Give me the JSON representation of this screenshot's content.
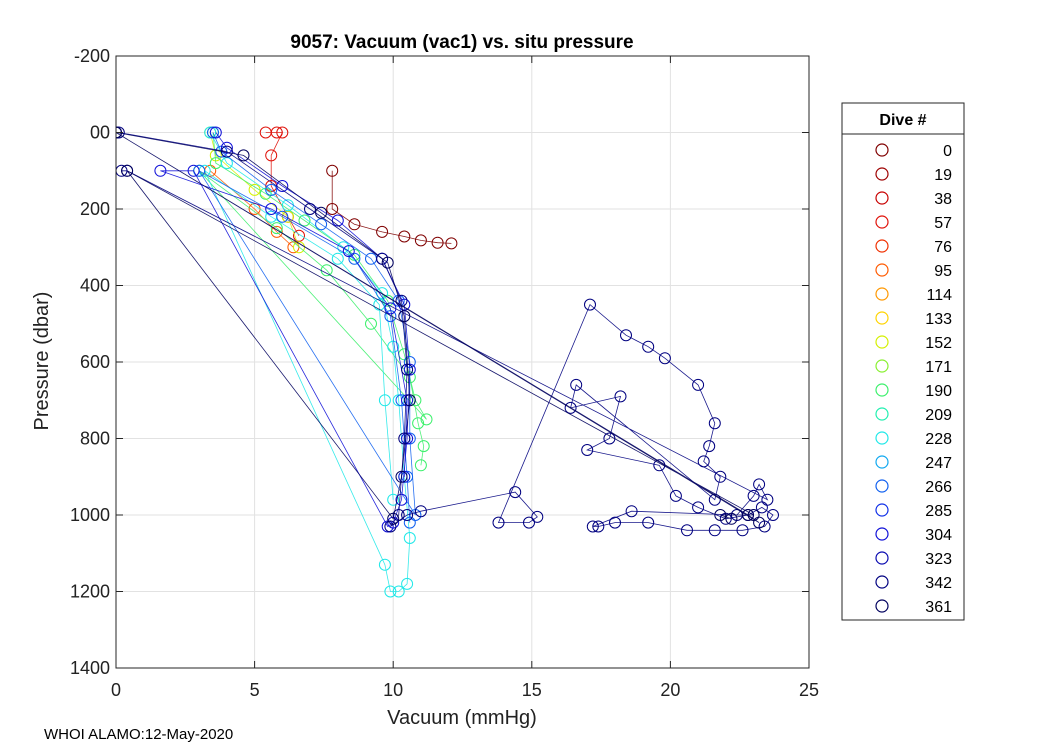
{
  "footer": "WHOI ALAMO:12-May-2020",
  "chart_data": {
    "type": "scatter",
    "title": "9057: Vacuum (vac1) vs. situ pressure",
    "xlabel": "Vacuum (mmHg)",
    "ylabel": "Pressure (dbar)",
    "xlim": [
      0,
      25
    ],
    "ylim": [
      -200,
      1400
    ],
    "y_reversed": true,
    "grid": true,
    "x_ticks": [
      0,
      5,
      10,
      15,
      20,
      25
    ],
    "y_ticks": [
      -200,
      0,
      200,
      400,
      600,
      800,
      1000,
      1200,
      1400
    ],
    "y_tick_labels": [
      "-200",
      "00",
      "200",
      "400",
      "600",
      "800",
      "1000",
      "1200",
      "1400"
    ],
    "legend": {
      "title": "Dive #",
      "placement": "outside-right",
      "entries": [
        {
          "label": "0",
          "color": "#800000"
        },
        {
          "label": "19",
          "color": "#9e0000"
        },
        {
          "label": "38",
          "color": "#c80000"
        },
        {
          "label": "57",
          "color": "#e0120a"
        },
        {
          "label": "76",
          "color": "#f03000"
        },
        {
          "label": "95",
          "color": "#ff5a00"
        },
        {
          "label": "114",
          "color": "#ff9800"
        },
        {
          "label": "133",
          "color": "#ffd400"
        },
        {
          "label": "152",
          "color": "#d4f000"
        },
        {
          "label": "171",
          "color": "#88f030"
        },
        {
          "label": "190",
          "color": "#3cf06c"
        },
        {
          "label": "209",
          "color": "#20f0b0"
        },
        {
          "label": "228",
          "color": "#20e8e8"
        },
        {
          "label": "247",
          "color": "#10a8f0"
        },
        {
          "label": "266",
          "color": "#1060f0"
        },
        {
          "label": "285",
          "color": "#1030e8"
        },
        {
          "label": "304",
          "color": "#1010d8"
        },
        {
          "label": "323",
          "color": "#0a0ab0"
        },
        {
          "label": "342",
          "color": "#000080"
        },
        {
          "label": "361",
          "color": "#00005e"
        }
      ]
    },
    "series": [
      {
        "name": "0",
        "color": "#800000",
        "points": [
          [
            7.8,
            100
          ],
          [
            7.8,
            200
          ],
          [
            8.6,
            240
          ],
          [
            9.6,
            260
          ],
          [
            10.4,
            272
          ],
          [
            11.0,
            282
          ],
          [
            11.6,
            288
          ],
          [
            12.1,
            290
          ]
        ]
      },
      {
        "name": "57",
        "color": "#e0120a",
        "points": [
          [
            5.4,
            0
          ],
          [
            5.8,
            0
          ],
          [
            6.0,
            0
          ],
          [
            5.6,
            60
          ],
          [
            5.6,
            140
          ],
          [
            6.2,
            220
          ],
          [
            6.6,
            270
          ]
        ]
      },
      {
        "name": "95",
        "color": "#ff5a00",
        "points": [
          [
            3.4,
            100
          ],
          [
            5.0,
            200
          ],
          [
            5.8,
            260
          ],
          [
            6.4,
            300
          ]
        ]
      },
      {
        "name": "152",
        "color": "#d4f000",
        "points": [
          [
            3.4,
            0
          ],
          [
            3.6,
            60
          ],
          [
            5.0,
            150
          ],
          [
            6.2,
            220
          ],
          [
            6.6,
            300
          ]
        ]
      },
      {
        "name": "190",
        "color": "#3cf06c",
        "points": [
          [
            3.5,
            0
          ],
          [
            3.6,
            80
          ],
          [
            5.4,
            160
          ],
          [
            6.8,
            230
          ],
          [
            8.6,
            320
          ],
          [
            9.8,
            440
          ],
          [
            10.4,
            580
          ],
          [
            10.8,
            700
          ],
          [
            11.2,
            750
          ],
          [
            3.0,
            100
          ],
          [
            5.8,
            250
          ],
          [
            7.6,
            360
          ],
          [
            9.2,
            500
          ],
          [
            10.6,
            640
          ],
          [
            10.9,
            760
          ],
          [
            11.1,
            820
          ],
          [
            11.0,
            870
          ]
        ]
      },
      {
        "name": "228",
        "color": "#20e8e8",
        "points": [
          [
            3.4,
            0
          ],
          [
            4.0,
            80
          ],
          [
            6.2,
            190
          ],
          [
            8.2,
            300
          ],
          [
            9.6,
            420
          ],
          [
            10.0,
            560
          ],
          [
            10.2,
            700
          ],
          [
            10.4,
            900
          ],
          [
            10.6,
            1060
          ],
          [
            10.5,
            1180
          ],
          [
            10.2,
            1200
          ],
          [
            9.9,
            1200
          ],
          [
            9.7,
            1130
          ],
          [
            3.2,
            100
          ],
          [
            5.6,
            220
          ],
          [
            8.0,
            330
          ],
          [
            9.5,
            450
          ],
          [
            9.7,
            700
          ],
          [
            10.0,
            960
          ]
        ]
      },
      {
        "name": "266",
        "color": "#1060f0",
        "points": [
          [
            3.5,
            0
          ],
          [
            3.8,
            50
          ],
          [
            5.6,
            150
          ],
          [
            7.4,
            240
          ],
          [
            9.2,
            330
          ],
          [
            10.2,
            440
          ],
          [
            10.6,
            600
          ],
          [
            10.6,
            800
          ],
          [
            10.8,
            1000
          ],
          [
            3.0,
            100
          ],
          [
            6.0,
            220
          ],
          [
            8.6,
            330
          ],
          [
            9.9,
            480
          ],
          [
            10.3,
            700
          ],
          [
            10.5,
            900
          ],
          [
            10.6,
            1020
          ]
        ]
      },
      {
        "name": "304",
        "color": "#1010d8",
        "points": [
          [
            3.6,
            0
          ],
          [
            4.0,
            40
          ],
          [
            6.0,
            140
          ],
          [
            8.0,
            230
          ],
          [
            9.6,
            330
          ],
          [
            10.4,
            450
          ],
          [
            10.6,
            620
          ],
          [
            10.5,
            800
          ],
          [
            10.3,
            960
          ],
          [
            10.0,
            1020
          ],
          [
            9.8,
            1030
          ],
          [
            2.8,
            100
          ],
          [
            1.6,
            100
          ],
          [
            5.6,
            200
          ],
          [
            8.4,
            310
          ],
          [
            9.9,
            460
          ],
          [
            10.5,
            700
          ],
          [
            10.4,
            900
          ]
        ]
      },
      {
        "name": "342",
        "color": "#000080",
        "points": [
          [
            0,
            0
          ],
          [
            0.1,
            0
          ],
          [
            4.0,
            50
          ],
          [
            7.0,
            200
          ],
          [
            9.6,
            330
          ],
          [
            10.3,
            440
          ],
          [
            10.5,
            620
          ],
          [
            10.4,
            800
          ],
          [
            10.2,
            1000
          ],
          [
            9.9,
            1030
          ],
          [
            10.5,
            1000
          ],
          [
            11.0,
            990
          ],
          [
            14.4,
            940
          ],
          [
            15.2,
            1005
          ],
          [
            14.9,
            1020
          ],
          [
            13.8,
            1020
          ],
          [
            17.1,
            450
          ],
          [
            18.4,
            530
          ],
          [
            19.2,
            560
          ],
          [
            19.8,
            590
          ],
          [
            21.0,
            660
          ],
          [
            21.6,
            760
          ],
          [
            21.4,
            820
          ],
          [
            21.2,
            860
          ],
          [
            21.8,
            900
          ],
          [
            21.6,
            960
          ],
          [
            16.6,
            660
          ],
          [
            16.4,
            720
          ],
          [
            18.2,
            690
          ],
          [
            17.8,
            800
          ],
          [
            17.0,
            830
          ],
          [
            19.6,
            870
          ],
          [
            20.2,
            950
          ],
          [
            21.0,
            980
          ],
          [
            22.0,
            1010
          ],
          [
            22.8,
            1000
          ],
          [
            23.3,
            980
          ],
          [
            23.7,
            1000
          ],
          [
            23.4,
            1030
          ],
          [
            22.6,
            1040
          ],
          [
            21.6,
            1040
          ],
          [
            20.6,
            1040
          ],
          [
            19.2,
            1020
          ],
          [
            18.0,
            1020
          ],
          [
            17.4,
            1030
          ],
          [
            17.2,
            1030
          ],
          [
            18.6,
            990
          ],
          [
            22.4,
            1000
          ],
          [
            23.0,
            950
          ],
          [
            23.2,
            920
          ],
          [
            23.5,
            960
          ],
          [
            0.4,
            100
          ],
          [
            0.2,
            100
          ]
        ]
      },
      {
        "name": "361",
        "color": "#00005e",
        "points": [
          [
            0,
            0
          ],
          [
            22.8,
            1000
          ],
          [
            23.2,
            1020
          ],
          [
            0,
            0
          ],
          [
            4.6,
            60
          ],
          [
            7.4,
            210
          ],
          [
            9.8,
            340
          ],
          [
            10.4,
            480
          ],
          [
            10.6,
            700
          ],
          [
            10.3,
            900
          ],
          [
            10.0,
            1010
          ],
          [
            0.4,
            100
          ],
          [
            23.0,
            1000
          ],
          [
            21.8,
            1000
          ],
          [
            22.2,
            1010
          ]
        ]
      }
    ]
  }
}
